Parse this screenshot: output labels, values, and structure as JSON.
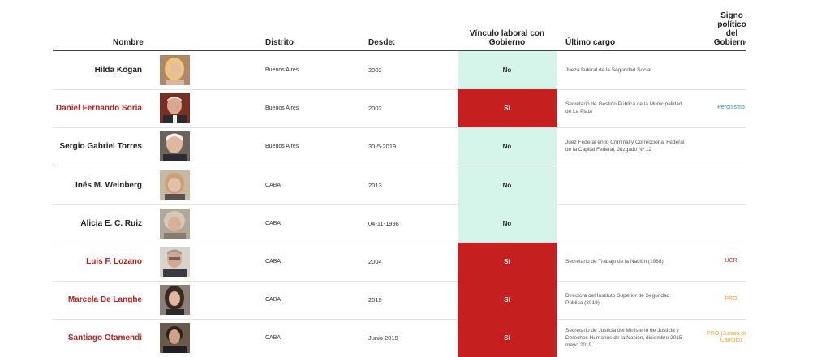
{
  "headers": {
    "nombre": "Nombre",
    "distrito": "Distrito",
    "desde": "Desde:",
    "vinculo": "Vínculo laboral con Gobierno",
    "cargo": "Último cargo",
    "signo": "Signo político del Gobierno"
  },
  "rows": [
    {
      "name": "Hilda Kogan",
      "distrito": "Buenos Aires",
      "desde": "2002",
      "vinculo": "No",
      "cargo": "Jueza federal de la Seguridad Social",
      "signo": ""
    },
    {
      "name": "Daniel Fernando Soria",
      "distrito": "Buenos Aires",
      "desde": "2002",
      "vinculo": "Sí",
      "cargo": "Secretario de Gestión Pública de la Municipalidad de La Plata",
      "signo": "Peronismo"
    },
    {
      "name": "Sergio Gabriel Torres",
      "distrito": "Buenos Aires",
      "desde": "30-5-2019",
      "vinculo": "No",
      "cargo": "Juez Federal en lo Criminal y Correccional Federal de la Capital Federal, Juzgado Nº 12",
      "signo": ""
    },
    {
      "name": "Inés M. Weinberg",
      "distrito": "CABA",
      "desde": "2013",
      "vinculo": "No",
      "cargo": "",
      "signo": ""
    },
    {
      "name": "Alicia E. C. Ruiz",
      "distrito": "CABA",
      "desde": "04-11-1998",
      "vinculo": "No",
      "cargo": "",
      "signo": ""
    },
    {
      "name": "Luis F. Lozano",
      "distrito": "CABA",
      "desde": "2004",
      "vinculo": "Sí",
      "cargo": "Secretario de Trabajo de la Nación (1988)",
      "signo": "UCR"
    },
    {
      "name": "Marcela De Langhe",
      "distrito": "CABA",
      "desde": "2019",
      "vinculo": "Sí",
      "cargo": "Directora del Instituto Superior de Seguridad Pública (2019)",
      "signo": "PRO"
    },
    {
      "name": "Santiago Otamendi",
      "distrito": "CABA",
      "desde": "Junio 2019",
      "vinculo": "Sí",
      "cargo": "Secretario de Justicia del Ministerio de Justicia y Derechos Humanos de la Nación, diciembre 2015 – mayo 2019.",
      "signo": "PRO (Juntos por el Cambio)"
    }
  ],
  "colors": {
    "si_bg": "#c51f1f",
    "no_bg": "#d5f5ea",
    "name_red": "#b72020",
    "peronismo": "#2a7fa0",
    "ucr": "#cc3322",
    "pro": "#f0a020"
  }
}
